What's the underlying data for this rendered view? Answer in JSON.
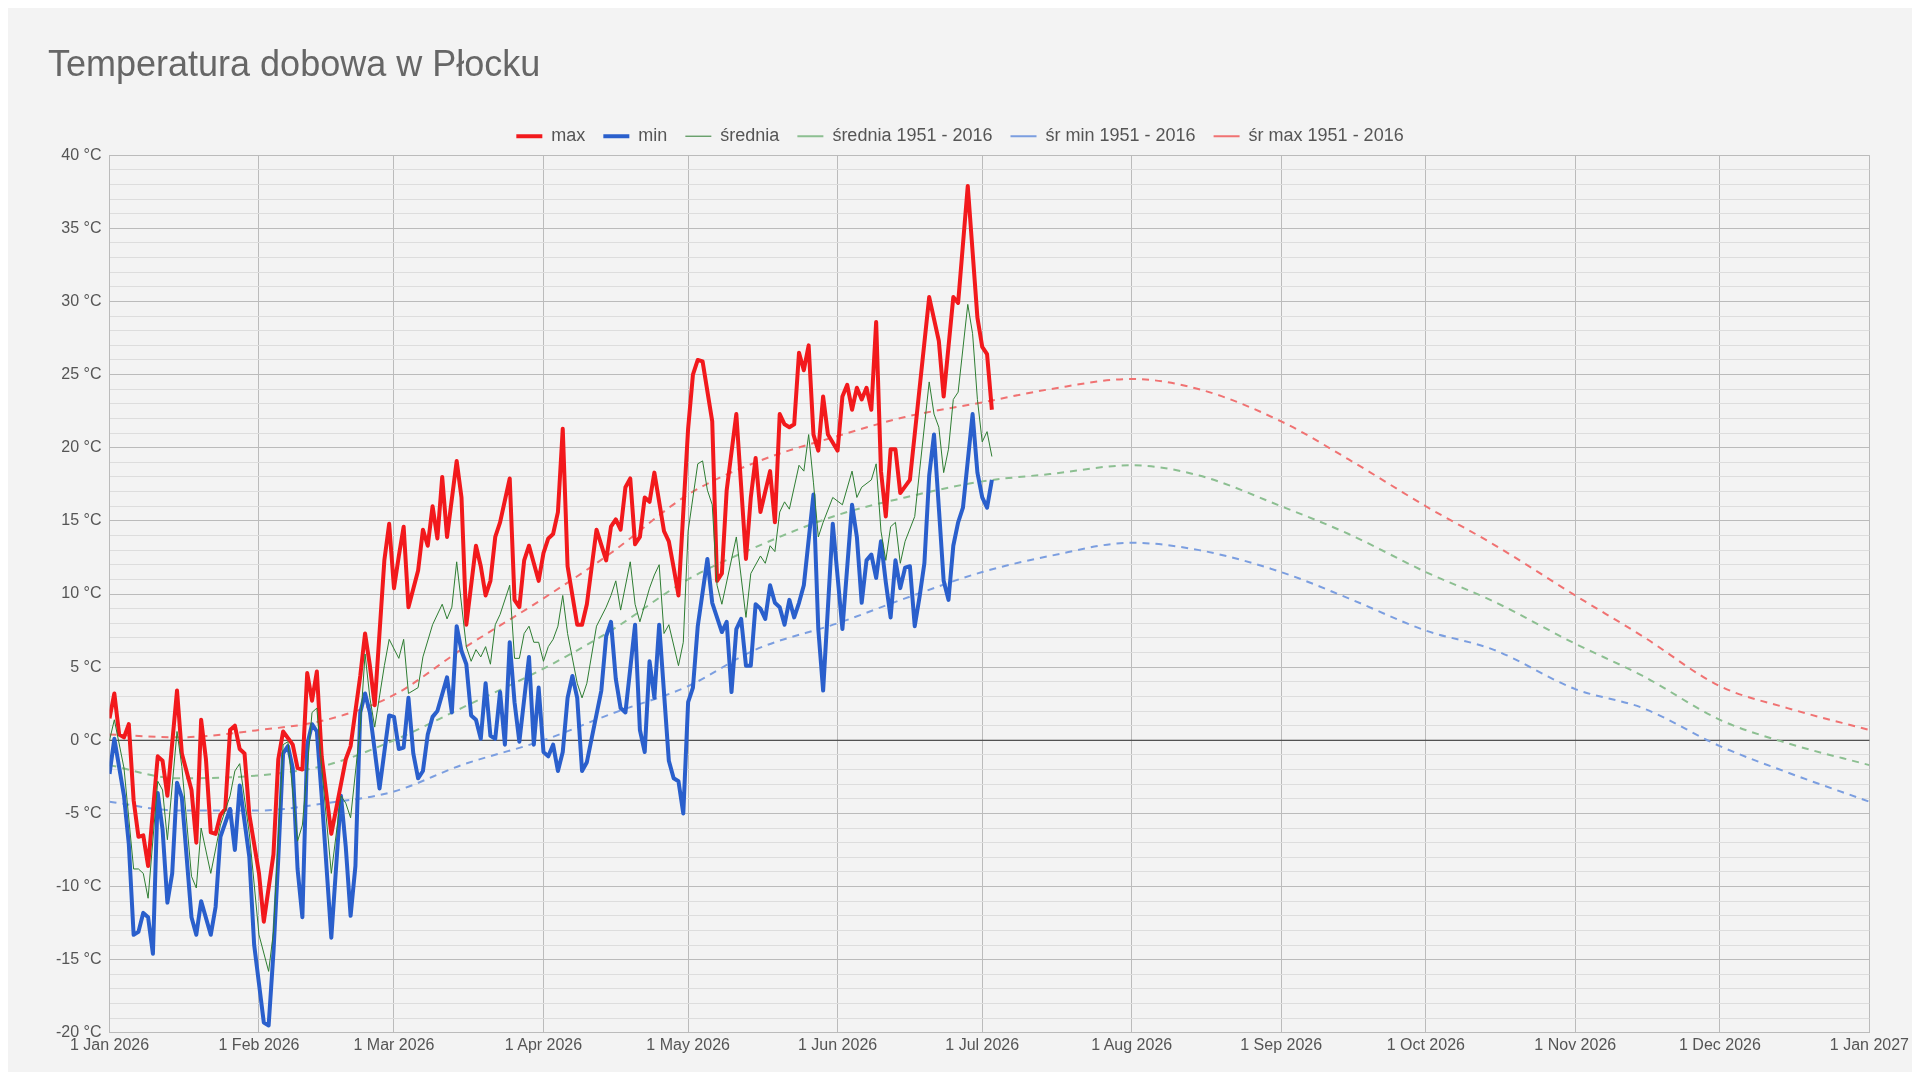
{
  "chart_data": {
    "type": "line",
    "title": "Temperatura dobowa w Płocku",
    "xlim": [
      "2026-01-01",
      "2027-01-01"
    ],
    "xticks": [
      {
        "value": "2026-01-01",
        "label": "1 Jan 2026"
      },
      {
        "value": "2026-02-01",
        "label": "1 Feb 2026"
      },
      {
        "value": "2026-03-01",
        "label": "1 Mar 2026"
      },
      {
        "value": "2026-04-01",
        "label": "1 Apr 2026"
      },
      {
        "value": "2026-05-01",
        "label": "1 May 2026"
      },
      {
        "value": "2026-06-01",
        "label": "1 Jun 2026"
      },
      {
        "value": "2026-07-01",
        "label": "1 Jul 2026"
      },
      {
        "value": "2026-08-01",
        "label": "1 Aug 2026"
      },
      {
        "value": "2026-09-01",
        "label": "1 Sep 2026"
      },
      {
        "value": "2026-10-01",
        "label": "1 Oct 2026"
      },
      {
        "value": "2026-11-01",
        "label": "1 Nov 2026"
      },
      {
        "value": "2026-12-01",
        "label": "1 Dec 2026"
      },
      {
        "value": "2027-01-01",
        "label": "1 Jan 2027"
      }
    ],
    "ylim": [
      -20,
      40
    ],
    "yticks": [
      {
        "value": -20,
        "label": "-20 °C"
      },
      {
        "value": -19,
        "label": null
      },
      {
        "value": -18,
        "label": null
      },
      {
        "value": -17,
        "label": null
      },
      {
        "value": -16,
        "label": null
      },
      {
        "value": -15,
        "label": "-15 °C"
      },
      {
        "value": -14,
        "label": null
      },
      {
        "value": -13,
        "label": null
      },
      {
        "value": -12,
        "label": null
      },
      {
        "value": -11,
        "label": null
      },
      {
        "value": -10,
        "label": "-10 °C"
      },
      {
        "value": -9,
        "label": null
      },
      {
        "value": -8,
        "label": null
      },
      {
        "value": -7,
        "label": null
      },
      {
        "value": -6,
        "label": null
      },
      {
        "value": -5,
        "label": "-5 °C"
      },
      {
        "value": -4,
        "label": null
      },
      {
        "value": -3,
        "label": null
      },
      {
        "value": -2,
        "label": null
      },
      {
        "value": -1,
        "label": null
      },
      {
        "value": 0,
        "label": "0 °C"
      },
      {
        "value": 1,
        "label": null
      },
      {
        "value": 2,
        "label": null
      },
      {
        "value": 3,
        "label": null
      },
      {
        "value": 4,
        "label": null
      },
      {
        "value": 5,
        "label": "5 °C"
      },
      {
        "value": 6,
        "label": null
      },
      {
        "value": 7,
        "label": null
      },
      {
        "value": 8,
        "label": null
      },
      {
        "value": 9,
        "label": null
      },
      {
        "value": 10,
        "label": "10 °C"
      },
      {
        "value": 11,
        "label": null
      },
      {
        "value": 12,
        "label": null
      },
      {
        "value": 13,
        "label": null
      },
      {
        "value": 14,
        "label": null
      },
      {
        "value": 15,
        "label": "15 °C"
      },
      {
        "value": 16,
        "label": null
      },
      {
        "value": 17,
        "label": null
      },
      {
        "value": 18,
        "label": null
      },
      {
        "value": 19,
        "label": null
      },
      {
        "value": 20,
        "label": "20 °C"
      },
      {
        "value": 21,
        "label": null
      },
      {
        "value": 22,
        "label": null
      },
      {
        "value": 23,
        "label": null
      },
      {
        "value": 24,
        "label": null
      },
      {
        "value": 25,
        "label": "25 °C"
      },
      {
        "value": 26,
        "label": null
      },
      {
        "value": 27,
        "label": null
      },
      {
        "value": 28,
        "label": null
      },
      {
        "value": 29,
        "label": null
      },
      {
        "value": 30,
        "label": "30 °C"
      },
      {
        "value": 31,
        "label": null
      },
      {
        "value": 32,
        "label": null
      },
      {
        "value": 33,
        "label": null
      },
      {
        "value": 34,
        "label": null
      },
      {
        "value": 35,
        "label": "35 °C"
      },
      {
        "value": 36,
        "label": null
      },
      {
        "value": 37,
        "label": null
      },
      {
        "value": 38,
        "label": null
      },
      {
        "value": 39,
        "label": null
      },
      {
        "value": 40,
        "label": "40 °C"
      }
    ],
    "grid": true,
    "legend": "top",
    "marker": "none",
    "ref_lines": [
      {
        "axis": "y",
        "value": 0,
        "label": null,
        "color": "#333333"
      }
    ],
    "series": [
      {
        "name": "max",
        "color": "#f2191c",
        "line_style": "solid",
        "x": [
          "2026-01-01",
          "2026-01-02",
          "2026-01-03",
          "2026-01-04",
          "2026-01-05",
          "2026-01-06",
          "2026-01-07",
          "2026-01-08",
          "2026-01-09",
          "2026-01-11",
          "2026-01-12",
          "2026-01-13",
          "2026-01-15",
          "2026-01-16",
          "2026-01-18",
          "2026-01-19",
          "2026-01-20",
          "2026-01-21",
          "2026-01-22",
          "2026-01-23",
          "2026-01-24",
          "2026-01-25",
          "2026-01-26",
          "2026-01-27",
          "2026-01-28",
          "2026-01-29",
          "2026-01-30",
          "2026-02-01",
          "2026-02-02",
          "2026-02-04",
          "2026-02-05",
          "2026-02-06",
          "2026-02-08",
          "2026-02-09",
          "2026-02-10",
          "2026-02-11",
          "2026-02-12",
          "2026-02-13",
          "2026-02-14",
          "2026-02-16",
          "2026-02-18",
          "2026-02-19",
          "2026-02-20",
          "2026-02-22",
          "2026-02-23",
          "2026-02-24",
          "2026-02-25",
          "2026-02-27",
          "2026-02-28",
          "2026-03-01",
          "2026-03-02",
          "2026-03-03",
          "2026-03-04",
          "2026-03-06",
          "2026-03-07",
          "2026-03-08",
          "2026-03-09",
          "2026-03-10",
          "2026-03-11",
          "2026-03-12",
          "2026-03-14",
          "2026-03-15",
          "2026-03-16",
          "2026-03-18",
          "2026-03-19",
          "2026-03-20",
          "2026-03-21",
          "2026-03-22",
          "2026-03-23",
          "2026-03-25",
          "2026-03-26",
          "2026-03-27",
          "2026-03-28",
          "2026-03-29",
          "2026-03-31",
          "2026-04-01",
          "2026-04-02",
          "2026-04-03",
          "2026-04-04",
          "2026-04-05",
          "2026-04-06",
          "2026-04-08",
          "2026-04-09",
          "2026-04-10",
          "2026-04-12",
          "2026-04-14",
          "2026-04-15",
          "2026-04-16",
          "2026-04-17",
          "2026-04-18",
          "2026-04-19",
          "2026-04-20",
          "2026-04-21",
          "2026-04-22",
          "2026-04-23",
          "2026-04-24",
          "2026-04-26",
          "2026-04-27",
          "2026-04-28",
          "2026-04-29",
          "2026-05-01",
          "2026-05-02",
          "2026-05-03",
          "2026-05-04",
          "2026-05-06",
          "2026-05-07",
          "2026-05-08",
          "2026-05-09",
          "2026-05-11",
          "2026-05-13",
          "2026-05-14",
          "2026-05-15",
          "2026-05-16",
          "2026-05-18",
          "2026-05-19",
          "2026-05-20",
          "2026-05-21",
          "2026-05-22",
          "2026-05-23",
          "2026-05-24",
          "2026-05-25",
          "2026-05-26",
          "2026-05-27",
          "2026-05-28",
          "2026-05-29",
          "2026-05-30",
          "2026-06-01",
          "2026-06-02",
          "2026-06-03",
          "2026-06-04",
          "2026-06-05",
          "2026-06-06",
          "2026-06-07",
          "2026-06-08",
          "2026-06-09",
          "2026-06-10",
          "2026-06-11",
          "2026-06-12",
          "2026-06-13",
          "2026-06-14",
          "2026-06-16",
          "2026-06-20",
          "2026-06-22",
          "2026-06-23",
          "2026-06-25",
          "2026-06-26",
          "2026-06-28",
          "2026-06-30",
          "2026-07-01",
          "2026-07-02",
          "2026-07-03"
        ],
        "values": [
          1.5,
          3.2,
          0.4,
          0.2,
          1.1,
          -4.1,
          -6.6,
          -6.5,
          -8.6,
          -1.1,
          -1.4,
          -3.8,
          3.4,
          -0.9,
          -3.4,
          -7.0,
          1.4,
          -1.3,
          -6.3,
          -6.4,
          -5.1,
          -4.7,
          0.7,
          1.0,
          -0.6,
          -0.9,
          -5.1,
          -9.1,
          -12.4,
          -7.8,
          -1.3,
          0.6,
          -0.3,
          -1.9,
          -2.0,
          4.6,
          2.7,
          4.7,
          -1.1,
          -6.4,
          -3.0,
          -1.3,
          -0.4,
          4.4,
          7.3,
          5.1,
          2.4,
          12.3,
          14.8,
          10.4,
          12.6,
          14.6,
          9.1,
          11.6,
          14.4,
          13.3,
          16.0,
          13.8,
          18.0,
          13.9,
          19.1,
          16.6,
          7.9,
          13.3,
          11.9,
          9.9,
          10.9,
          13.9,
          14.9,
          17.9,
          9.6,
          9.1,
          12.3,
          13.3,
          10.9,
          12.8,
          13.8,
          14.1,
          15.6,
          21.3,
          11.9,
          7.9,
          7.9,
          9.3,
          14.4,
          12.3,
          14.6,
          15.1,
          14.4,
          17.3,
          17.9,
          13.4,
          13.9,
          16.6,
          16.3,
          18.3,
          14.3,
          13.6,
          11.8,
          9.9,
          21.3,
          25.0,
          26.0,
          25.9,
          21.8,
          10.9,
          11.4,
          17.1,
          22.3,
          12.4,
          16.6,
          19.3,
          15.6,
          18.4,
          14.9,
          22.3,
          21.6,
          21.4,
          21.6,
          26.5,
          25.3,
          27.0,
          20.9,
          19.8,
          23.5,
          20.9,
          19.8,
          23.5,
          24.3,
          22.6,
          24.1,
          23.3,
          24.1,
          22.6,
          28.6,
          18.4,
          15.3,
          19.9,
          19.9,
          16.9,
          17.8,
          30.3,
          27.3,
          23.5,
          30.3,
          29.9,
          37.9,
          28.9,
          26.9,
          26.4,
          22.6
        ]
      },
      {
        "name": "min",
        "color": "#2a5fcc",
        "line_style": "solid",
        "x": [
          "2026-01-01",
          "2026-01-02",
          "2026-01-04",
          "2026-01-05",
          "2026-01-06",
          "2026-01-07",
          "2026-01-08",
          "2026-01-09",
          "2026-01-10",
          "2026-01-11",
          "2026-01-12",
          "2026-01-13",
          "2026-01-14",
          "2026-01-15",
          "2026-01-16",
          "2026-01-18",
          "2026-01-19",
          "2026-01-20",
          "2026-01-22",
          "2026-01-23",
          "2026-01-24",
          "2026-01-26",
          "2026-01-27",
          "2026-01-28",
          "2026-01-30",
          "2026-01-31",
          "2026-02-02",
          "2026-02-03",
          "2026-02-04",
          "2026-02-05",
          "2026-02-06",
          "2026-02-07",
          "2026-02-08",
          "2026-02-09",
          "2026-02-10",
          "2026-02-11",
          "2026-02-12",
          "2026-02-13",
          "2026-02-14",
          "2026-02-16",
          "2026-02-18",
          "2026-02-19",
          "2026-02-20",
          "2026-02-21",
          "2026-02-22",
          "2026-02-23",
          "2026-02-24",
          "2026-02-26",
          "2026-02-28",
          "2026-03-01",
          "2026-03-02",
          "2026-03-03",
          "2026-03-04",
          "2026-03-05",
          "2026-03-06",
          "2026-03-07",
          "2026-03-08",
          "2026-03-09",
          "2026-03-10",
          "2026-03-12",
          "2026-03-13",
          "2026-03-14",
          "2026-03-15",
          "2026-03-16",
          "2026-03-17",
          "2026-03-18",
          "2026-03-19",
          "2026-03-20",
          "2026-03-21",
          "2026-03-22",
          "2026-03-23",
          "2026-03-24",
          "2026-03-25",
          "2026-03-26",
          "2026-03-27",
          "2026-03-29",
          "2026-03-30",
          "2026-03-31",
          "2026-04-01",
          "2026-04-02",
          "2026-04-03",
          "2026-04-04",
          "2026-04-05",
          "2026-04-06",
          "2026-04-07",
          "2026-04-08",
          "2026-04-09",
          "2026-04-10",
          "2026-04-13",
          "2026-04-14",
          "2026-04-15",
          "2026-04-16",
          "2026-04-17",
          "2026-04-18",
          "2026-04-20",
          "2026-04-21",
          "2026-04-22",
          "2026-04-23",
          "2026-04-24",
          "2026-04-25",
          "2026-04-27",
          "2026-04-28",
          "2026-04-29",
          "2026-04-30",
          "2026-05-01",
          "2026-05-02",
          "2026-05-03",
          "2026-05-05",
          "2026-05-06",
          "2026-05-08",
          "2026-05-09",
          "2026-05-10",
          "2026-05-11",
          "2026-05-12",
          "2026-05-13",
          "2026-05-14",
          "2026-05-15",
          "2026-05-16",
          "2026-05-17",
          "2026-05-18",
          "2026-05-19",
          "2026-05-20",
          "2026-05-21",
          "2026-05-22",
          "2026-05-23",
          "2026-05-24",
          "2026-05-25",
          "2026-05-27",
          "2026-05-28",
          "2026-05-29",
          "2026-05-31",
          "2026-06-02",
          "2026-06-04",
          "2026-06-05",
          "2026-06-06",
          "2026-06-07",
          "2026-06-08",
          "2026-06-09",
          "2026-06-10",
          "2026-06-11",
          "2026-06-12",
          "2026-06-13",
          "2026-06-14",
          "2026-06-15",
          "2026-06-16",
          "2026-06-17",
          "2026-06-18",
          "2026-06-19",
          "2026-06-20",
          "2026-06-21",
          "2026-06-23",
          "2026-06-24",
          "2026-06-25",
          "2026-06-26",
          "2026-06-27",
          "2026-06-29",
          "2026-06-30",
          "2026-07-01",
          "2026-07-02",
          "2026-07-03"
        ],
        "values": [
          -2.3,
          0.1,
          -3.8,
          -7.1,
          -13.3,
          -13.1,
          -11.8,
          -12.1,
          -14.6,
          -3.6,
          -6.1,
          -11.1,
          -9.1,
          -2.9,
          -3.9,
          -12.1,
          -13.3,
          -11.0,
          -13.3,
          -11.4,
          -6.6,
          -4.7,
          -7.5,
          -3.1,
          -8.0,
          -14.0,
          -19.3,
          -19.5,
          -14.5,
          -8.1,
          -0.9,
          -0.4,
          -1.9,
          -8.8,
          -12.1,
          -0.3,
          1.1,
          0.6,
          -3.8,
          -13.5,
          -3.8,
          -7.3,
          -12.0,
          -8.6,
          1.9,
          3.2,
          1.9,
          -3.3,
          1.7,
          1.6,
          -0.6,
          -0.5,
          2.9,
          -0.9,
          -2.6,
          -2.1,
          0.4,
          1.6,
          2.0,
          4.3,
          1.9,
          7.8,
          6.1,
          5.2,
          1.7,
          1.4,
          0.1,
          3.9,
          0.3,
          0.1,
          3.3,
          -0.3,
          6.7,
          2.6,
          -0.1,
          5.7,
          -0.3,
          3.6,
          -0.8,
          -1.1,
          -0.3,
          -2.1,
          -0.8,
          2.9,
          4.4,
          2.9,
          -2.1,
          -1.5,
          3.4,
          7.1,
          8.1,
          4.2,
          2.2,
          1.9,
          7.9,
          0.7,
          -0.8,
          5.4,
          2.9,
          7.9,
          -1.4,
          -2.6,
          -2.8,
          -5.0,
          2.6,
          3.6,
          7.8,
          12.4,
          9.4,
          7.4,
          8.1,
          3.3,
          7.6,
          8.3,
          5.1,
          5.1,
          9.3,
          9.0,
          8.3,
          10.6,
          9.4,
          9.1,
          7.9,
          9.6,
          8.4,
          9.4,
          10.6,
          16.8,
          7.6,
          3.4,
          14.8,
          7.6,
          16.1,
          13.9,
          9.4,
          12.3,
          12.7,
          11.1,
          13.6,
          10.8,
          8.4,
          12.3,
          10.4,
          11.8,
          11.9,
          7.8,
          9.8,
          12.1,
          18.1,
          20.9,
          10.9,
          9.6,
          13.3,
          14.9,
          15.9,
          22.3,
          18.3,
          16.6,
          15.9,
          17.8
        ]
      },
      {
        "name": "średnia",
        "color": "#2e7d32",
        "line_style": "solid",
        "x": [
          "2026-01-01",
          "2026-01-02",
          "2026-01-04",
          "2026-01-06",
          "2026-01-07",
          "2026-01-08",
          "2026-01-09",
          "2026-01-11",
          "2026-01-12",
          "2026-01-13",
          "2026-01-15",
          "2026-01-16",
          "2026-01-18",
          "2026-01-19",
          "2026-01-20",
          "2026-01-22",
          "2026-01-24",
          "2026-01-26",
          "2026-01-27",
          "2026-01-28",
          "2026-01-30",
          "2026-02-01",
          "2026-02-03",
          "2026-02-04",
          "2026-02-06",
          "2026-02-07",
          "2026-02-09",
          "2026-02-10",
          "2026-02-12",
          "2026-02-13",
          "2026-02-14",
          "2026-02-16",
          "2026-02-18",
          "2026-02-19",
          "2026-02-20",
          "2026-02-22",
          "2026-02-23",
          "2026-02-24",
          "2026-02-25",
          "2026-02-27",
          "2026-02-28",
          "2026-03-02",
          "2026-03-03",
          "2026-03-04",
          "2026-03-06",
          "2026-03-07",
          "2026-03-09",
          "2026-03-11",
          "2026-03-12",
          "2026-03-13",
          "2026-03-14",
          "2026-03-16",
          "2026-03-17",
          "2026-03-18",
          "2026-03-19",
          "2026-03-20",
          "2026-03-21",
          "2026-03-22",
          "2026-03-23",
          "2026-03-25",
          "2026-03-26",
          "2026-03-27",
          "2026-03-28",
          "2026-03-29",
          "2026-03-30",
          "2026-03-31",
          "2026-04-01",
          "2026-04-02",
          "2026-04-03",
          "2026-04-04",
          "2026-04-05",
          "2026-04-06",
          "2026-04-08",
          "2026-04-09",
          "2026-04-10",
          "2026-04-12",
          "2026-04-14",
          "2026-04-15",
          "2026-04-16",
          "2026-04-17",
          "2026-04-19",
          "2026-04-20",
          "2026-04-21",
          "2026-04-23",
          "2026-04-24",
          "2026-04-25",
          "2026-04-26",
          "2026-04-27",
          "2026-04-29",
          "2026-04-30",
          "2026-05-01",
          "2026-05-03",
          "2026-05-04",
          "2026-05-05",
          "2026-05-06",
          "2026-05-07",
          "2026-05-08",
          "2026-05-11",
          "2026-05-13",
          "2026-05-14",
          "2026-05-16",
          "2026-05-17",
          "2026-05-18",
          "2026-05-19",
          "2026-05-20",
          "2026-05-21",
          "2026-05-22",
          "2026-05-24",
          "2026-05-25",
          "2026-05-26",
          "2026-05-27",
          "2026-05-28",
          "2026-05-29",
          "2026-05-31",
          "2026-06-02",
          "2026-06-04",
          "2026-06-05",
          "2026-06-06",
          "2026-06-08",
          "2026-06-09",
          "2026-06-10",
          "2026-06-11",
          "2026-06-12",
          "2026-06-13",
          "2026-06-14",
          "2026-06-15",
          "2026-06-17",
          "2026-06-18",
          "2026-06-20",
          "2026-06-21",
          "2026-06-22",
          "2026-06-23",
          "2026-06-24",
          "2026-06-25",
          "2026-06-26",
          "2026-06-28",
          "2026-06-29",
          "2026-06-30",
          "2026-07-01",
          "2026-07-02",
          "2026-07-03"
        ],
        "values": [
          0.0,
          1.4,
          -1.9,
          -8.8,
          -8.8,
          -9.1,
          -10.8,
          -2.8,
          -3.4,
          -6.8,
          0.6,
          -1.8,
          -9.3,
          -10.1,
          -6.0,
          -9.1,
          -5.8,
          -3.8,
          -2.1,
          -1.6,
          -6.4,
          -13.3,
          -15.8,
          -13.1,
          -0.3,
          -0.1,
          -6.9,
          -5.8,
          1.9,
          2.2,
          -1.8,
          -9.1,
          -3.8,
          -4.3,
          -5.3,
          0.9,
          5.9,
          2.9,
          0.9,
          5.1,
          6.9,
          5.6,
          6.9,
          3.2,
          3.6,
          5.7,
          7.9,
          9.3,
          8.3,
          9.1,
          12.2,
          6.4,
          5.4,
          6.2,
          5.7,
          6.4,
          5.2,
          7.9,
          8.6,
          10.6,
          5.6,
          5.6,
          7.3,
          7.8,
          6.7,
          6.7,
          5.4,
          6.4,
          6.9,
          7.8,
          9.9,
          7.3,
          3.9,
          2.9,
          3.9,
          7.8,
          9.1,
          9.9,
          10.9,
          8.9,
          12.2,
          9.3,
          8.1,
          10.4,
          11.3,
          12.0,
          7.3,
          7.9,
          5.1,
          6.7,
          14.3,
          18.9,
          19.1,
          17.1,
          16.1,
          10.6,
          9.3,
          13.9,
          8.4,
          11.4,
          12.6,
          12.1,
          13.3,
          12.9,
          15.6,
          16.3,
          15.8,
          18.8,
          18.4,
          20.9,
          17.6,
          13.9,
          14.9,
          16.6,
          16.1,
          18.4,
          16.6,
          17.3,
          17.8,
          18.9,
          14.3,
          12.3,
          14.6,
          14.9,
          12.1,
          13.6,
          15.3,
          18.4,
          24.5,
          22.3,
          21.4,
          18.3,
          19.9,
          23.3,
          23.8,
          29.8,
          27.8,
          23.3,
          20.4,
          21.1,
          19.4
        ]
      },
      {
        "name": "średnia 1951 - 2016",
        "color": "#8cbf91",
        "line_style": "dashed",
        "x": [
          "2026-01-01",
          "2026-01-15",
          "2026-02-01",
          "2026-02-15",
          "2026-03-01",
          "2026-03-15",
          "2026-04-01",
          "2026-04-15",
          "2026-05-01",
          "2026-05-15",
          "2026-06-01",
          "2026-06-15",
          "2026-07-01",
          "2026-07-15",
          "2026-08-01",
          "2026-08-15",
          "2026-09-01",
          "2026-09-15",
          "2026-10-01",
          "2026-10-15",
          "2026-11-01",
          "2026-11-15",
          "2026-12-01",
          "2026-12-15",
          "2027-01-01"
        ],
        "values": [
          -1.7,
          -2.6,
          -2.4,
          -1.7,
          0.0,
          2.2,
          4.9,
          7.5,
          11.0,
          13.2,
          15.4,
          16.6,
          17.7,
          18.2,
          18.8,
          18.1,
          16.0,
          14.1,
          11.5,
          9.5,
          6.6,
          4.4,
          1.4,
          -0.2,
          -1.7
        ]
      },
      {
        "name": "śr min 1951 - 2016",
        "color": "#7b9ee0",
        "line_style": "dashed",
        "x": [
          "2026-01-01",
          "2026-01-15",
          "2026-02-01",
          "2026-02-15",
          "2026-03-01",
          "2026-03-15",
          "2026-04-01",
          "2026-04-15",
          "2026-05-01",
          "2026-05-15",
          "2026-06-01",
          "2026-06-15",
          "2026-07-01",
          "2026-07-15",
          "2026-08-01",
          "2026-08-15",
          "2026-09-01",
          "2026-09-15",
          "2026-10-01",
          "2026-10-15",
          "2026-11-01",
          "2026-11-15",
          "2026-12-01",
          "2026-12-15",
          "2027-01-01"
        ],
        "values": [
          -4.2,
          -4.8,
          -4.8,
          -4.3,
          -3.5,
          -1.7,
          0.0,
          1.8,
          3.7,
          6.2,
          8.0,
          9.7,
          11.5,
          12.6,
          13.5,
          13.0,
          11.5,
          9.7,
          7.5,
          6.2,
          3.5,
          2.2,
          -0.4,
          -2.2,
          -4.2
        ]
      },
      {
        "name": "śr max 1951 - 2016",
        "color": "#f07272",
        "line_style": "dashed",
        "x": [
          "2026-01-01",
          "2026-01-15",
          "2026-02-01",
          "2026-02-15",
          "2026-03-01",
          "2026-03-15",
          "2026-04-01",
          "2026-04-15",
          "2026-05-01",
          "2026-05-15",
          "2026-06-01",
          "2026-06-15",
          "2026-07-01",
          "2026-07-15",
          "2026-08-01",
          "2026-08-15",
          "2026-09-01",
          "2026-09-15",
          "2026-10-01",
          "2026-10-15",
          "2026-11-01",
          "2026-11-15",
          "2026-12-01",
          "2026-12-15",
          "2027-01-01"
        ],
        "values": [
          0.4,
          0.2,
          0.7,
          1.4,
          3.1,
          6.2,
          9.7,
          12.8,
          16.8,
          19.0,
          20.8,
          22.1,
          23.1,
          24.0,
          24.7,
          24.0,
          21.8,
          19.2,
          16.0,
          13.4,
          9.9,
          7.1,
          3.7,
          2.2,
          0.7
        ]
      }
    ]
  }
}
